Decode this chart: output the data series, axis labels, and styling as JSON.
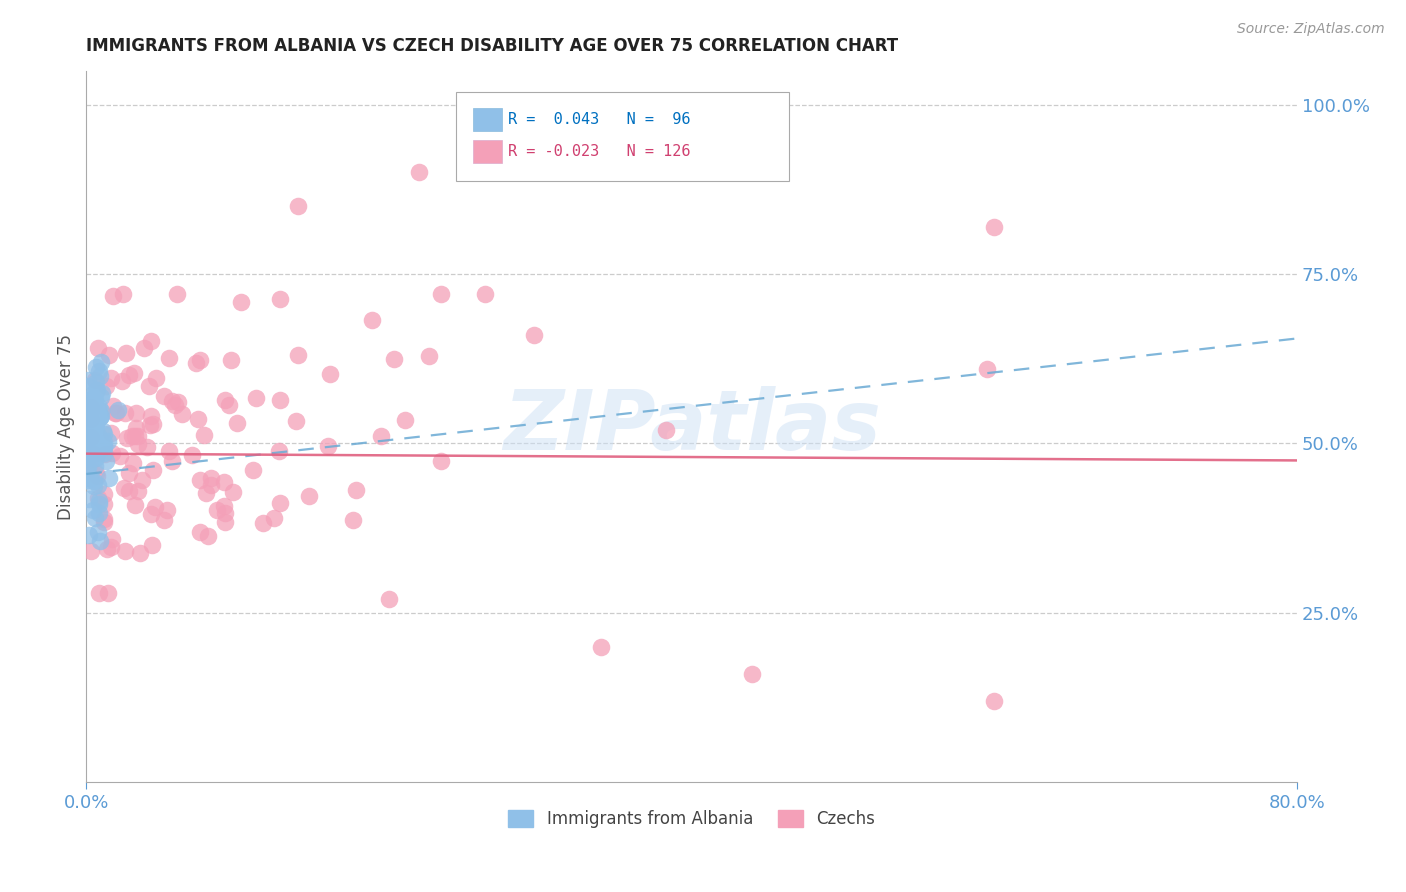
{
  "title": "IMMIGRANTS FROM ALBANIA VS CZECH DISABILITY AGE OVER 75 CORRELATION CHART",
  "source": "Source: ZipAtlas.com",
  "ylabel": "Disability Age Over 75",
  "albania_color": "#90c0e8",
  "czech_color": "#f4a0b8",
  "albania_trend_color": "#6aaad4",
  "czech_trend_color": "#e06080",
  "watermark_text": "ZIPatlas",
  "watermark_color": "#cce0f5",
  "background_color": "#ffffff",
  "grid_color": "#cccccc",
  "axis_color": "#5b9bd5",
  "title_color": "#222222",
  "right_yticks": [
    0.25,
    0.5,
    0.75,
    1.0
  ],
  "right_yticklabels": [
    "25.0%",
    "50.0%",
    "75.0%",
    "100.0%"
  ],
  "xlim": [
    0.0,
    0.8
  ],
  "ylim": [
    0.0,
    1.05
  ],
  "xticklabels": [
    "0.0%",
    "80.0%"
  ],
  "legend_R1": "R =  0.043",
  "legend_N1": "N =  96",
  "legend_R2": "R = -0.023",
  "legend_N2": "N = 126",
  "legend_color1": "#0070c0",
  "legend_color2": "#d04070",
  "bottom_label1": "Immigrants from Albania",
  "bottom_label2": "Czechs",
  "alb_trend": [
    0.455,
    0.655
  ],
  "cz_trend": [
    0.485,
    0.475
  ]
}
